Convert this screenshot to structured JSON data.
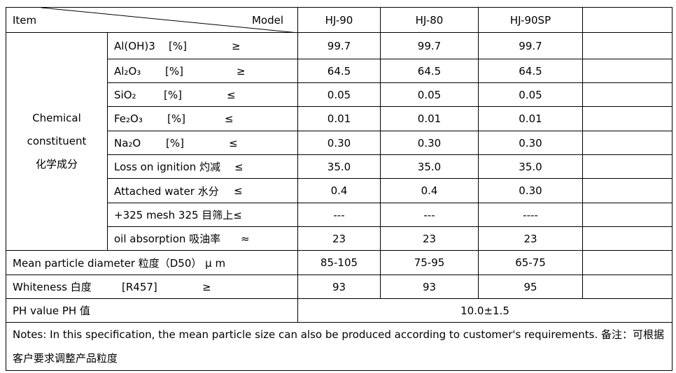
{
  "header": {
    "item": "Item",
    "model": "Model",
    "models": [
      "HJ-90",
      "HJ-80",
      "HJ-90SP"
    ]
  },
  "chemical": {
    "group": [
      "Chemical",
      "constituent",
      "化学成分"
    ],
    "rows": [
      {
        "label": "Al(OH)3",
        "unit": "[%]",
        "sign": "≥",
        "values": [
          "99.7",
          "99.7",
          "99.7"
        ]
      },
      {
        "label": "Al₂O₃",
        "unit": "[%]",
        "sign": "≥",
        "values": [
          "64.5",
          "64.5",
          "64.5"
        ]
      },
      {
        "label": "SiO₂",
        "unit": "[%]",
        "sign": "≤",
        "values": [
          "0.05",
          "0.05",
          "0.05"
        ]
      },
      {
        "label": "Fe₂O₃",
        "unit": "[%]",
        "sign": "≤",
        "values": [
          "0.01",
          "0.01",
          "0.01"
        ]
      },
      {
        "label": "Na₂O",
        "unit": "[%]",
        "sign": "≤",
        "values": [
          "0.30",
          "0.30",
          "0.30"
        ]
      },
      {
        "label": "Loss on ignition  灼减",
        "sign": "≤",
        "values": [
          "35.0",
          "35.0",
          "35.0"
        ]
      },
      {
        "label": "Attached water 水分",
        "sign": "≤",
        "values": [
          "0.4",
          "0.4",
          "0.30"
        ]
      },
      {
        "label": "+325 mesh   325 目筛上≤",
        "values": [
          "---",
          "---",
          "----"
        ]
      },
      {
        "label": "oil absorption  吸油率",
        "sign": "≈",
        "values": [
          "23",
          "23",
          "23"
        ]
      }
    ]
  },
  "mean_particle": {
    "label": "Mean particle diameter 粒度（D50） μ m",
    "values": [
      "85-105",
      "75-95",
      "65-75"
    ]
  },
  "whiteness": {
    "label": "Whiteness 白度",
    "unit": "[R457]",
    "sign": "≥",
    "values": [
      "93",
      "93",
      "95"
    ]
  },
  "ph": {
    "label": "PH value PH 值",
    "value": "10.0±1.5"
  },
  "notes": "Notes: In this specification, the mean particle size can also be produced according to customer's requirements.  备注：可根据客户要求调整产品粒度"
}
